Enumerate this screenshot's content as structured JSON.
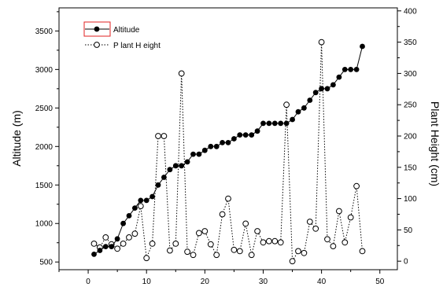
{
  "chart_data": {
    "type": "line",
    "x": [
      1,
      2,
      3,
      4,
      5,
      6,
      7,
      8,
      9,
      10,
      11,
      12,
      13,
      14,
      15,
      16,
      17,
      18,
      19,
      20,
      21,
      22,
      23,
      24,
      25,
      26,
      27,
      28,
      29,
      30,
      31,
      32,
      33,
      34,
      35,
      36,
      37,
      38,
      39,
      40,
      41,
      42,
      43,
      44,
      45,
      46,
      47
    ],
    "series": [
      {
        "name": "Altitude",
        "axis": "left",
        "marker": "filled-circle",
        "line": "solid",
        "color": "#000000",
        "values": [
          600,
          650,
          700,
          700,
          800,
          1000,
          1100,
          1200,
          1300,
          1300,
          1350,
          1500,
          1600,
          1700,
          1750,
          1750,
          1800,
          1900,
          1900,
          1950,
          2000,
          2000,
          2050,
          2050,
          2100,
          2150,
          2150,
          2150,
          2200,
          2300,
          2300,
          2300,
          2300,
          2300,
          2350,
          2450,
          2500,
          2600,
          2700,
          2750,
          2750,
          2800,
          2900,
          3000,
          3000,
          3000,
          3300
        ]
      },
      {
        "name": "P lant H eight",
        "axis": "right",
        "marker": "open-circle",
        "line": "dotted",
        "color": "#000000",
        "values": [
          28,
          22,
          38,
          27,
          20,
          28,
          38,
          44,
          88,
          5,
          28,
          200,
          200,
          17,
          28,
          300,
          15,
          10,
          45,
          48,
          27,
          10,
          75,
          100,
          18,
          16,
          60,
          10,
          48,
          30,
          32,
          32,
          30,
          250,
          0,
          16,
          13,
          63,
          52,
          350,
          35,
          24,
          80,
          30,
          70,
          120,
          16
        ]
      }
    ],
    "xlabel": "",
    "ylabel_left": "Altitude (m)",
    "ylabel_right": "Plant Height (cm)",
    "xlim": [
      -5,
      53
    ],
    "ylim_left": [
      400,
      3800
    ],
    "ylim_right": [
      -13.6,
      404.8
    ],
    "x_ticks": [
      0,
      10,
      20,
      30,
      40,
      50
    ],
    "y_ticks_left": [
      500,
      1000,
      1500,
      2000,
      2500,
      3000,
      3500
    ],
    "y_ticks_right": [
      0,
      50,
      100,
      150,
      200,
      250,
      300,
      350,
      400
    ],
    "grid": false,
    "legend_position": "top-left",
    "legend_highlight_color": "#e02020"
  }
}
